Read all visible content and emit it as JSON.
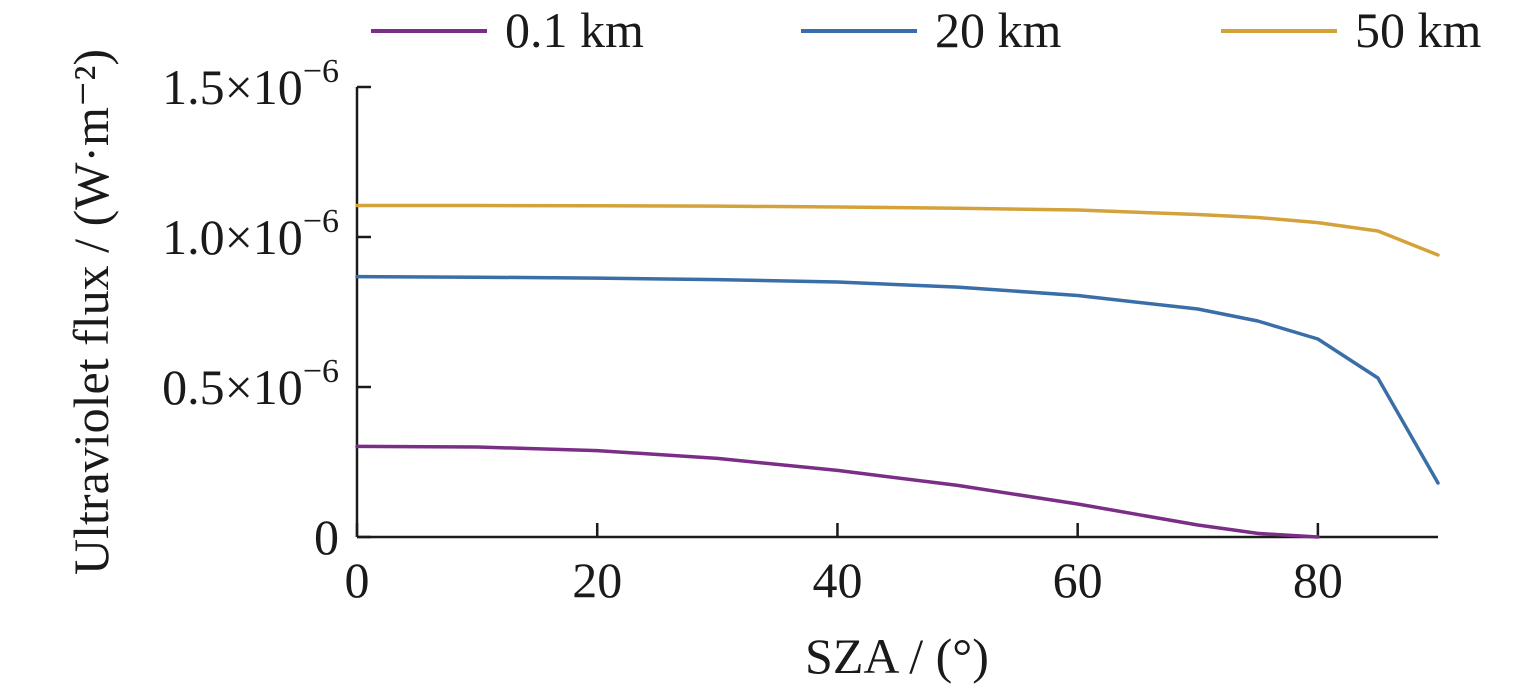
{
  "chart_data": {
    "type": "line",
    "title": "",
    "xlabel": "SZA / (°)",
    "ylabel": "Ultraviolet flux / (W·m⁻²)",
    "xlim": [
      0,
      90
    ],
    "ylim": [
      0,
      1.5e-06
    ],
    "x_ticks": [
      {
        "value": 0,
        "label": "0"
      },
      {
        "value": 20,
        "label": "20"
      },
      {
        "value": 40,
        "label": "40"
      },
      {
        "value": 60,
        "label": "60"
      },
      {
        "value": 80,
        "label": "80"
      }
    ],
    "y_ticks": [
      {
        "value": 0,
        "base": "0",
        "exp": ""
      },
      {
        "value": 5e-07,
        "base": "0.5×10",
        "exp": "−6"
      },
      {
        "value": 1e-06,
        "base": "1.0×10",
        "exp": "−6"
      },
      {
        "value": 1.5e-06,
        "base": "1.5×10",
        "exp": "−6"
      }
    ],
    "grid": false,
    "legend_position": "top",
    "series": [
      {
        "name": "0.1 km",
        "color": "#7a2e86",
        "points": [
          [
            0,
            3.02e-07
          ],
          [
            10,
            3e-07
          ],
          [
            20,
            2.88e-07
          ],
          [
            30,
            2.62e-07
          ],
          [
            40,
            2.22e-07
          ],
          [
            50,
            1.72e-07
          ],
          [
            60,
            1.1e-07
          ],
          [
            70,
            4e-08
          ],
          [
            75,
            1.2e-08
          ],
          [
            80,
            0
          ]
        ]
      },
      {
        "name": "20 km",
        "color": "#3a6ea8",
        "points": [
          [
            0,
            8.68e-07
          ],
          [
            10,
            8.66e-07
          ],
          [
            20,
            8.63e-07
          ],
          [
            30,
            8.58e-07
          ],
          [
            40,
            8.5e-07
          ],
          [
            50,
            8.33e-07
          ],
          [
            60,
            8.05e-07
          ],
          [
            70,
            7.6e-07
          ],
          [
            75,
            7.2e-07
          ],
          [
            80,
            6.6e-07
          ],
          [
            85,
            5.3e-07
          ],
          [
            90,
            1.8e-07
          ]
        ]
      },
      {
        "name": "50 km",
        "color": "#d4a23a",
        "points": [
          [
            0,
            1.105e-06
          ],
          [
            10,
            1.105e-06
          ],
          [
            20,
            1.104e-06
          ],
          [
            30,
            1.103e-06
          ],
          [
            40,
            1.1e-06
          ],
          [
            50,
            1.096e-06
          ],
          [
            60,
            1.09e-06
          ],
          [
            70,
            1.075e-06
          ],
          [
            75,
            1.065e-06
          ],
          [
            80,
            1.048e-06
          ],
          [
            85,
            1.02e-06
          ],
          [
            90,
            9.4e-07
          ]
        ]
      }
    ]
  }
}
